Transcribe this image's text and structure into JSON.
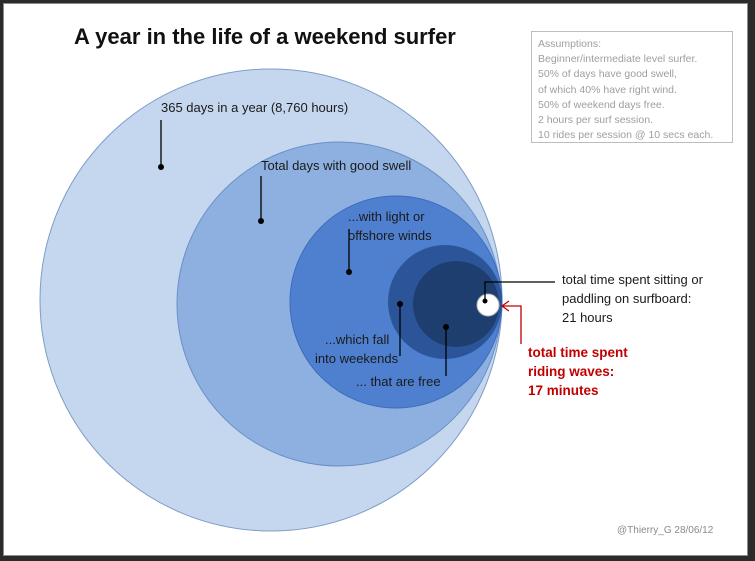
{
  "title": "A year in the life of a weekend surfer",
  "assumptions": {
    "heading": "Assumptions:",
    "lines": [
      "Beginner/intermediate level surfer.",
      "50% of days have good swell,",
      "of which 40% have right wind.",
      "50% of weekend days free.",
      "2 hours per surf session.",
      "10 rides per session @ 10 secs each."
    ]
  },
  "labels": {
    "year": "365 days in a year (8,760 hours)",
    "good_swell": "Total days with good swell",
    "light_winds_1": "...with light or",
    "light_winds_2": "offshore winds",
    "weekends_1": "...which fall",
    "weekends_2": "into weekends",
    "free": "... that are free",
    "sitting_1": "total time spent sitting or",
    "sitting_2": "paddling on surfboard:",
    "sitting_3": "21 hours",
    "riding_1": "total time spent",
    "riding_2": "riding waves:",
    "riding_3": "17 minutes"
  },
  "credit": "@Thierry_G 28/06/12",
  "colors": {
    "year": "#c5d7ee",
    "good_swell": "#8db0e0",
    "light_winds": "#4f80cf",
    "weekends": "#2b5598",
    "free": "#1e3e70",
    "sitting": "#ffffff",
    "accent_red": "#c00000"
  }
}
